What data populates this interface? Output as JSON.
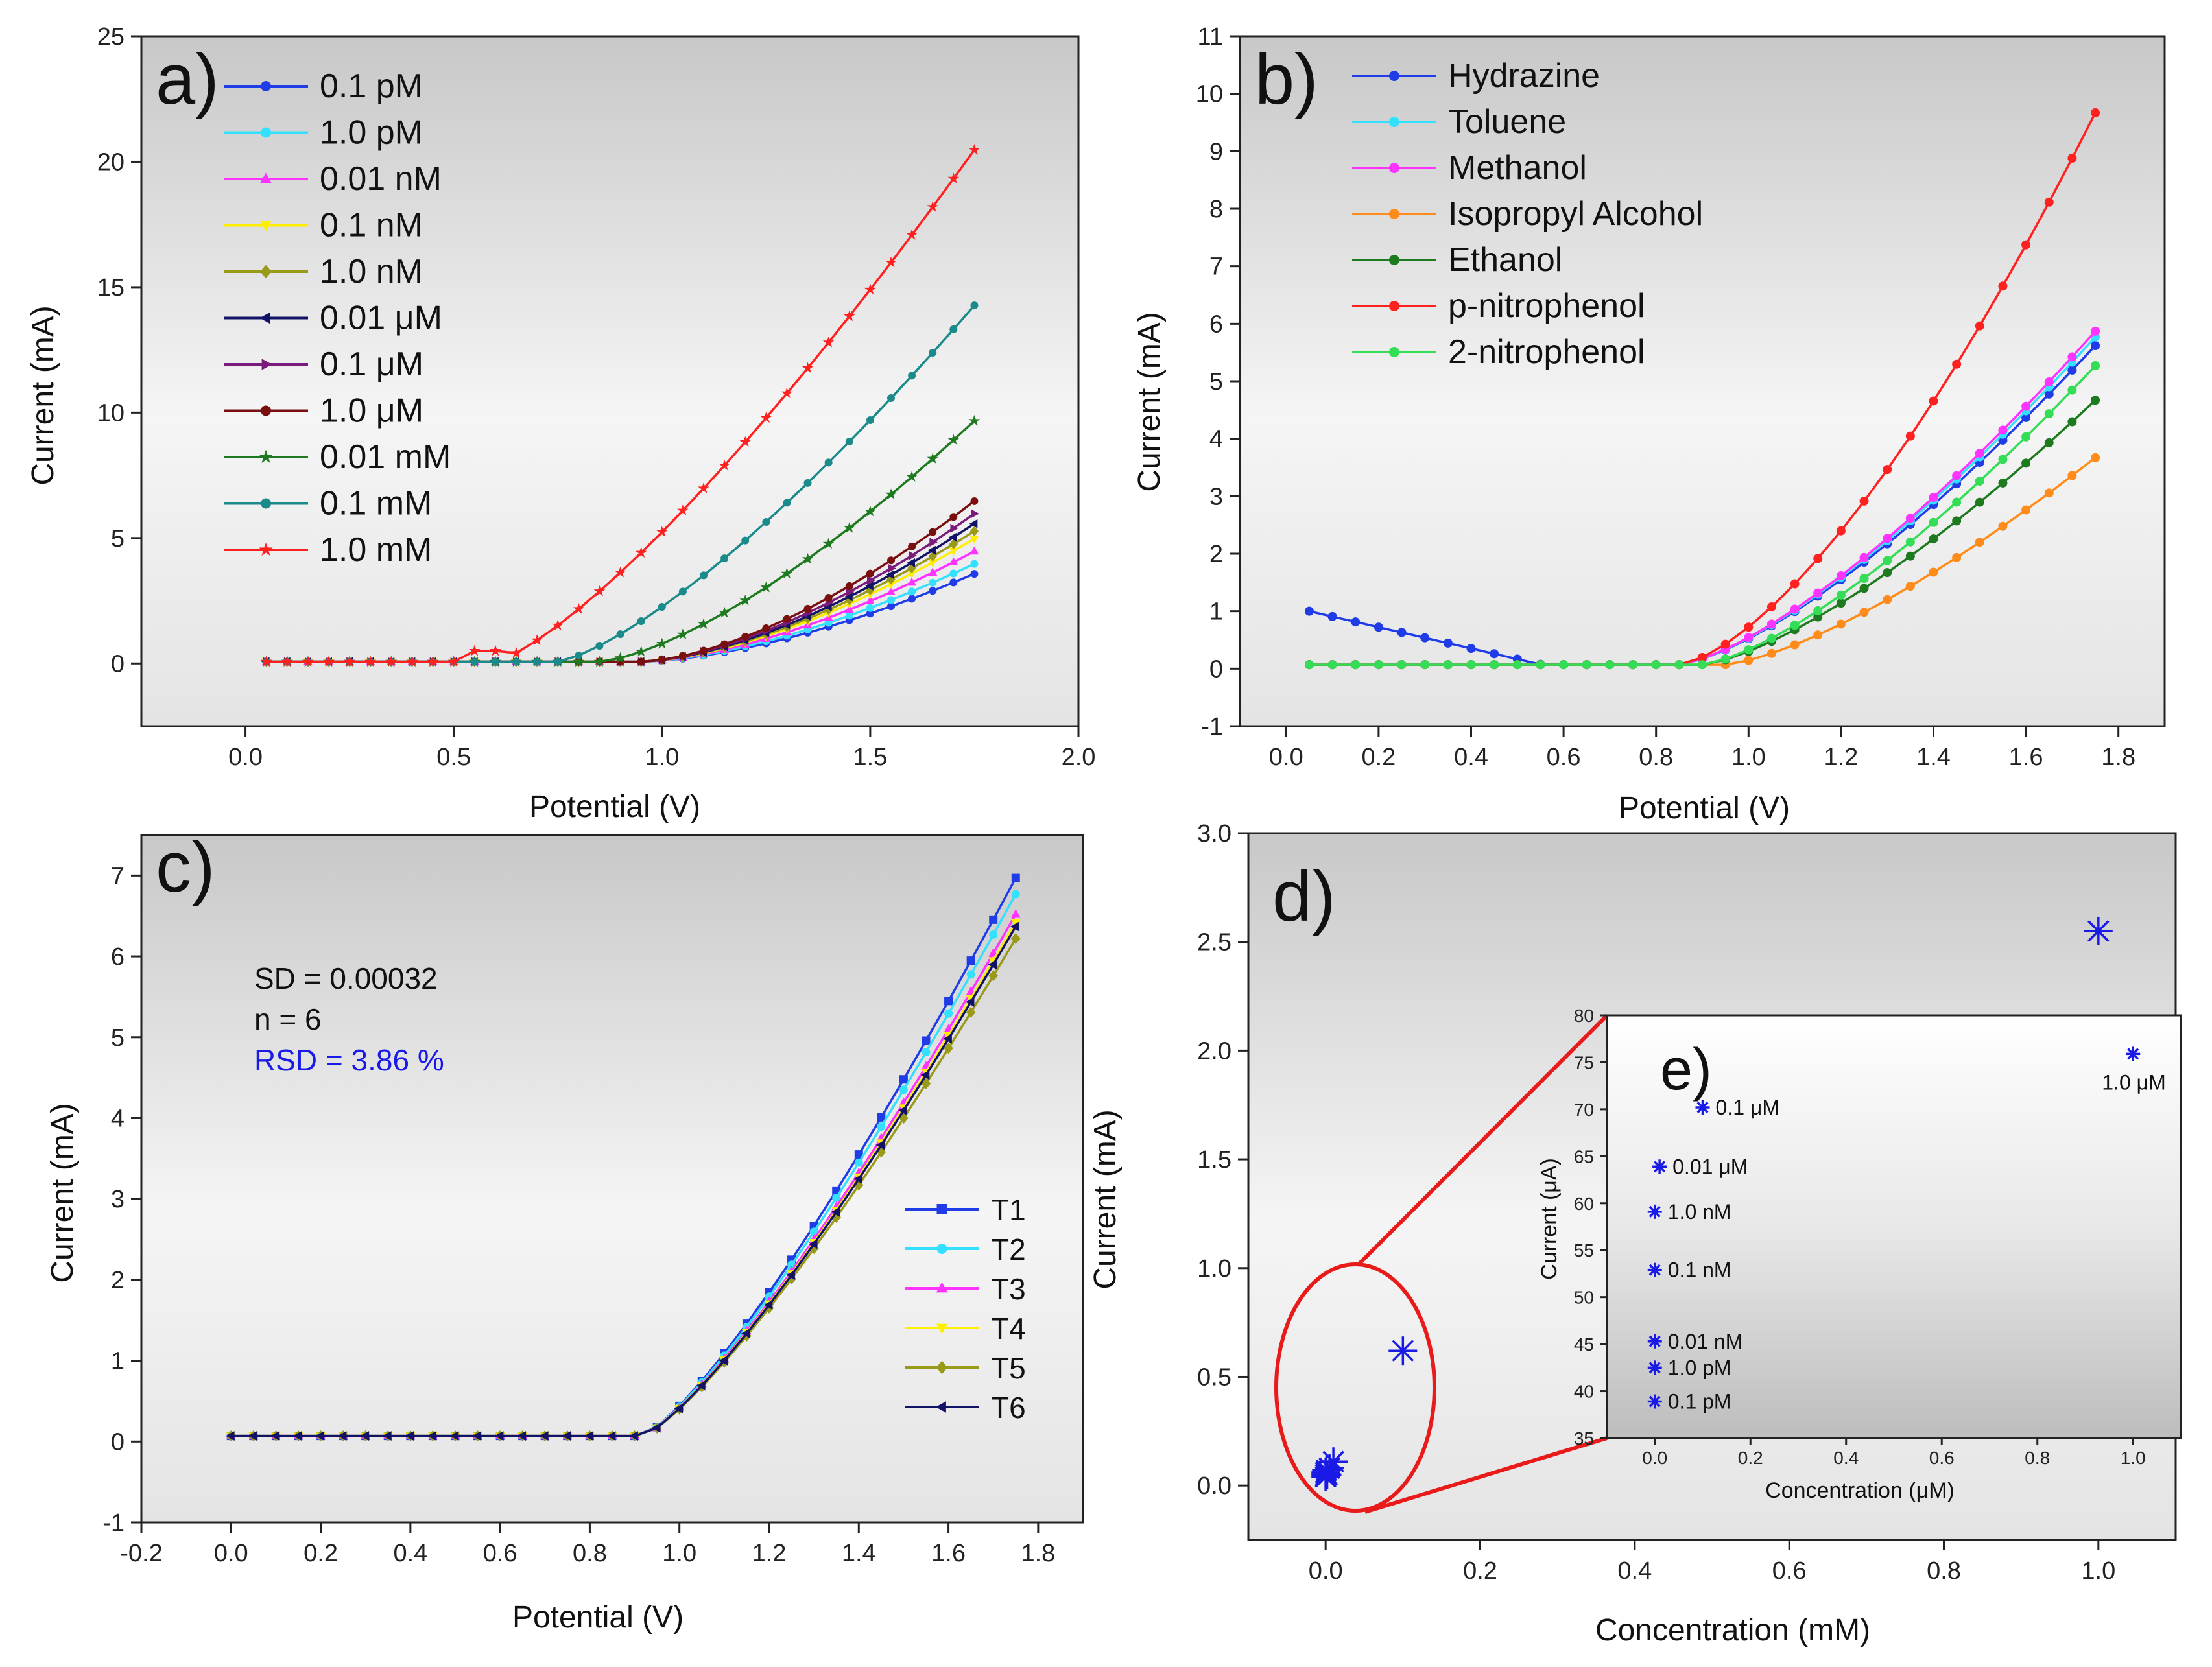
{
  "chart_data": [
    {
      "id": "a",
      "type": "line",
      "panel_label": "a)",
      "xlabel": "Potential (V)",
      "ylabel": "Current (mA)",
      "xlim": [
        -0.25,
        2.0
      ],
      "ylim": [
        -2.5,
        25
      ],
      "xticks": [
        0.0,
        0.5,
        1.0,
        1.5,
        2.0
      ],
      "yticks": [
        0,
        5,
        10,
        15,
        20,
        25
      ],
      "xtick_labels": [
        "0.0",
        "0.5",
        "1.0",
        "1.5",
        "2.0"
      ],
      "ytick_labels": [
        "0",
        "5",
        "10",
        "15",
        "20",
        "25"
      ],
      "x_start": 0.05,
      "x_step": 0.05,
      "onset": 0.95,
      "legend_position": "top-left",
      "series": [
        {
          "name": "0.1 pM",
          "color": "#1f3ce6",
          "marker": "circle",
          "end": 3.5,
          "shape": 1.6
        },
        {
          "name": "1.0 pM",
          "color": "#33e0ff",
          "marker": "circle",
          "end": 3.9,
          "shape": 1.6
        },
        {
          "name": "0.01 nM",
          "color": "#ff33ff",
          "marker": "triangle",
          "end": 4.4,
          "shape": 1.6
        },
        {
          "name": "0.1 nM",
          "color": "#ffee00",
          "marker": "triangle-down",
          "end": 4.9,
          "shape": 1.6
        },
        {
          "name": "1.0 nM",
          "color": "#9a9a1a",
          "marker": "diamond",
          "end": 5.2,
          "shape": 1.6
        },
        {
          "name": "0.01 μM",
          "color": "#121266",
          "marker": "triangle-left",
          "end": 5.5,
          "shape": 1.6
        },
        {
          "name": "0.1 μM",
          "color": "#7a1a7a",
          "marker": "triangle-right",
          "end": 5.9,
          "shape": 1.6
        },
        {
          "name": "1.0 μM",
          "color": "#7a0f0f",
          "marker": "circle",
          "end": 6.4,
          "shape": 1.6
        },
        {
          "name": "0.01 mM",
          "color": "#1e7a1e",
          "marker": "star",
          "end": 9.6,
          "shape": 1.45,
          "onset": 0.85
        },
        {
          "name": "0.1 mM",
          "color": "#1a8a8a",
          "marker": "circle",
          "end": 14.2,
          "shape": 1.35,
          "onset": 0.75
        },
        {
          "name": "1.0 mM",
          "color": "#ff2020",
          "marker": "star",
          "end": 20.4,
          "shape": 1.3,
          "onset": 0.6
        }
      ]
    },
    {
      "id": "b",
      "type": "line",
      "panel_label": "b)",
      "xlabel": "Potential (V)",
      "ylabel": "Current (mA)",
      "xlim": [
        -0.1,
        1.9
      ],
      "ylim": [
        -1,
        11
      ],
      "xticks": [
        0.0,
        0.2,
        0.4,
        0.6,
        0.8,
        1.0,
        1.2,
        1.4,
        1.6,
        1.8
      ],
      "xtick_labels": [
        "0.0",
        "0.2",
        "0.4",
        "0.6",
        "0.8",
        "1.0",
        "1.2",
        "1.4",
        "1.6",
        "1.8"
      ],
      "yticks": [
        -1,
        0,
        1,
        2,
        3,
        4,
        5,
        6,
        7,
        8,
        9,
        10,
        11
      ],
      "ytick_labels": [
        "-1",
        "0",
        "1",
        "2",
        "3",
        "4",
        "5",
        "6",
        "7",
        "8",
        "9",
        "10",
        "11"
      ],
      "x_start": 0.05,
      "x_step": 0.05,
      "onset": 0.85,
      "legend_position": "top-left",
      "series": [
        {
          "name": "Hydrazine",
          "color": "#1f3ce6",
          "end": 5.55,
          "shape": 1.4,
          "hydrazine": true
        },
        {
          "name": "Toluene",
          "color": "#33e0ff",
          "end": 5.7,
          "shape": 1.4
        },
        {
          "name": "Methanol",
          "color": "#ff33ff",
          "end": 5.8,
          "shape": 1.4
        },
        {
          "name": "Isopropyl Alcohol",
          "color": "#ff8c1a",
          "end": 3.6,
          "shape": 1.4,
          "onset": 0.95
        },
        {
          "name": "Ethanol",
          "color": "#1e7a1e",
          "end": 4.6,
          "shape": 1.4,
          "onset": 0.9
        },
        {
          "name": "p-nitrophenol",
          "color": "#ff2020",
          "end": 9.6,
          "shape": 1.5
        },
        {
          "name": "2-nitrophenol",
          "color": "#33dd55",
          "end": 5.2,
          "shape": 1.4,
          "onset": 0.9
        }
      ]
    },
    {
      "id": "c",
      "type": "line",
      "panel_label": "c)",
      "xlabel": "Potential (V)",
      "ylabel": "Current (mA)",
      "xlim": [
        -0.2,
        1.9
      ],
      "ylim": [
        -1,
        7.5
      ],
      "xticks": [
        -0.2,
        0.0,
        0.2,
        0.4,
        0.6,
        0.8,
        1.0,
        1.2,
        1.4,
        1.6,
        1.8
      ],
      "xtick_labels": [
        "-0.2",
        "0.0",
        "0.2",
        "0.4",
        "0.6",
        "0.8",
        "1.0",
        "1.2",
        "1.4",
        "1.6",
        "1.8"
      ],
      "yticks": [
        -1,
        0,
        1,
        2,
        3,
        4,
        5,
        6,
        7
      ],
      "ytick_labels": [
        "-1",
        "0",
        "1",
        "2",
        "3",
        "4",
        "5",
        "6",
        "7"
      ],
      "x_start": 0.0,
      "x_step": 0.05,
      "onset": 0.92,
      "legend_position": "right",
      "annotations": [
        "SD = 0.00032",
        "n = 6",
        "RSD = 3.86 %"
      ],
      "annotation_colors": [
        "#111111",
        "#111111",
        "#1a1ae6"
      ],
      "series": [
        {
          "name": "T1",
          "color": "#1f3ce6",
          "marker": "square",
          "end": 6.9,
          "shape": 1.25
        },
        {
          "name": "T2",
          "color": "#33e0ff",
          "marker": "circle",
          "end": 6.7,
          "shape": 1.25
        },
        {
          "name": "T3",
          "color": "#ff33ff",
          "marker": "triangle",
          "end": 6.45,
          "shape": 1.25
        },
        {
          "name": "T4",
          "color": "#ffee00",
          "marker": "triangle-down",
          "end": 6.35,
          "shape": 1.25
        },
        {
          "name": "T5",
          "color": "#9a9a1a",
          "marker": "diamond",
          "end": 6.15,
          "shape": 1.25
        },
        {
          "name": "T6",
          "color": "#121266",
          "marker": "triangle-left",
          "end": 6.3,
          "shape": 1.25
        }
      ]
    },
    {
      "id": "d",
      "type": "scatter",
      "panel_label": "d)",
      "xlabel": "Concentration (mM)",
      "ylabel": "Current (mA)",
      "xlim": [
        -0.1,
        1.1
      ],
      "ylim": [
        -0.25,
        3.0
      ],
      "xticks": [
        0.0,
        0.2,
        0.4,
        0.6,
        0.8,
        1.0
      ],
      "xtick_labels": [
        "0.0",
        "0.2",
        "0.4",
        "0.6",
        "0.8",
        "1.0"
      ],
      "yticks": [
        0.0,
        0.5,
        1.0,
        1.5,
        2.0,
        2.5,
        3.0
      ],
      "ytick_labels": [
        "0.0",
        "0.5",
        "1.0",
        "1.5",
        "2.0",
        "2.5",
        "3.0"
      ],
      "color": "#1a1ae6",
      "points": [
        {
          "x": 0.0,
          "y": 0.04
        },
        {
          "x": 0.0,
          "y": 0.05
        },
        {
          "x": 0.0,
          "y": 0.06
        },
        {
          "x": 0.001,
          "y": 0.07
        },
        {
          "x": 0.002,
          "y": 0.05
        },
        {
          "x": 0.005,
          "y": 0.08
        },
        {
          "x": 0.01,
          "y": 0.11
        },
        {
          "x": 0.1,
          "y": 0.62
        },
        {
          "x": 1.0,
          "y": 2.55
        }
      ]
    },
    {
      "id": "e",
      "type": "scatter",
      "panel_label": "e)",
      "xlabel": "Concentration (μM)",
      "ylabel": "Current (μA)",
      "xlim": [
        -0.1,
        1.1
      ],
      "ylim": [
        35,
        80
      ],
      "xticks": [
        0.0,
        0.2,
        0.4,
        0.6,
        0.8,
        1.0
      ],
      "xtick_labels": [
        "0.0",
        "0.2",
        "0.4",
        "0.6",
        "0.8",
        "1.0"
      ],
      "yticks": [
        35,
        40,
        45,
        50,
        55,
        60,
        65,
        70,
        75,
        80
      ],
      "ytick_labels": [
        "35",
        "40",
        "45",
        "50",
        "55",
        "60",
        "65",
        "70",
        "75",
        "80"
      ],
      "color": "#1a1ae6",
      "points": [
        {
          "x": 0.0,
          "y": 38.9,
          "label": "0.1 pM"
        },
        {
          "x": 0.0,
          "y": 42.5,
          "label": "1.0 pM"
        },
        {
          "x": 0.0,
          "y": 45.3,
          "label": "0.01 nM"
        },
        {
          "x": 0.0,
          "y": 52.9,
          "label": "0.1 nM"
        },
        {
          "x": 0.0,
          "y": 59.1,
          "label": "1.0 nM"
        },
        {
          "x": 0.01,
          "y": 63.9,
          "label": "0.01 μM"
        },
        {
          "x": 0.1,
          "y": 70.2,
          "label": "0.1 μM"
        },
        {
          "x": 1.0,
          "y": 75.9,
          "label": "1.0 μM"
        }
      ]
    }
  ]
}
